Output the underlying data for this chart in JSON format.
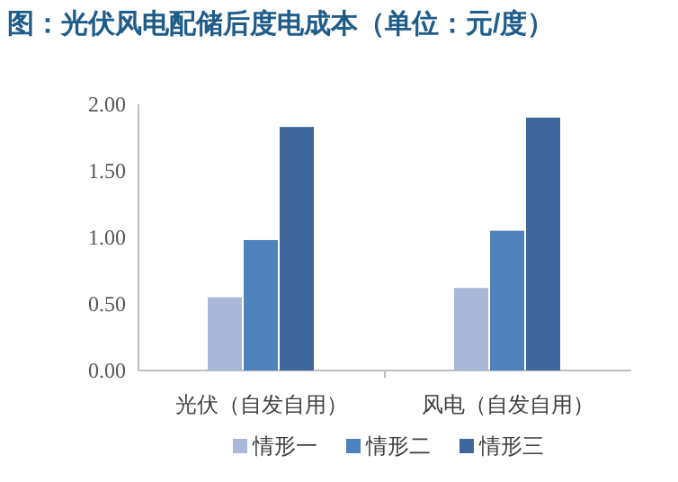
{
  "chart_data": {
    "type": "bar",
    "title": "图：光伏风电配储后度电成本（单位：元/度）",
    "categories": [
      "光伏（自发自用）",
      "风电（自发自用）"
    ],
    "series": [
      {
        "name": "情形一",
        "color": "#a9b8d8",
        "values": [
          0.55,
          0.62
        ]
      },
      {
        "name": "情形二",
        "color": "#4f81bd",
        "values": [
          0.98,
          1.05
        ]
      },
      {
        "name": "情形三",
        "color": "#3f679b",
        "values": [
          1.83,
          1.9
        ]
      }
    ],
    "ylim": [
      0,
      2
    ],
    "yticks": [
      {
        "value": 0,
        "label": "0.00"
      },
      {
        "value": 0.5,
        "label": "0.50"
      },
      {
        "value": 1,
        "label": "1.00"
      },
      {
        "value": 1.5,
        "label": "1.50"
      },
      {
        "value": 2,
        "label": "2.00"
      }
    ],
    "grid": false,
    "legend": "bottom"
  }
}
